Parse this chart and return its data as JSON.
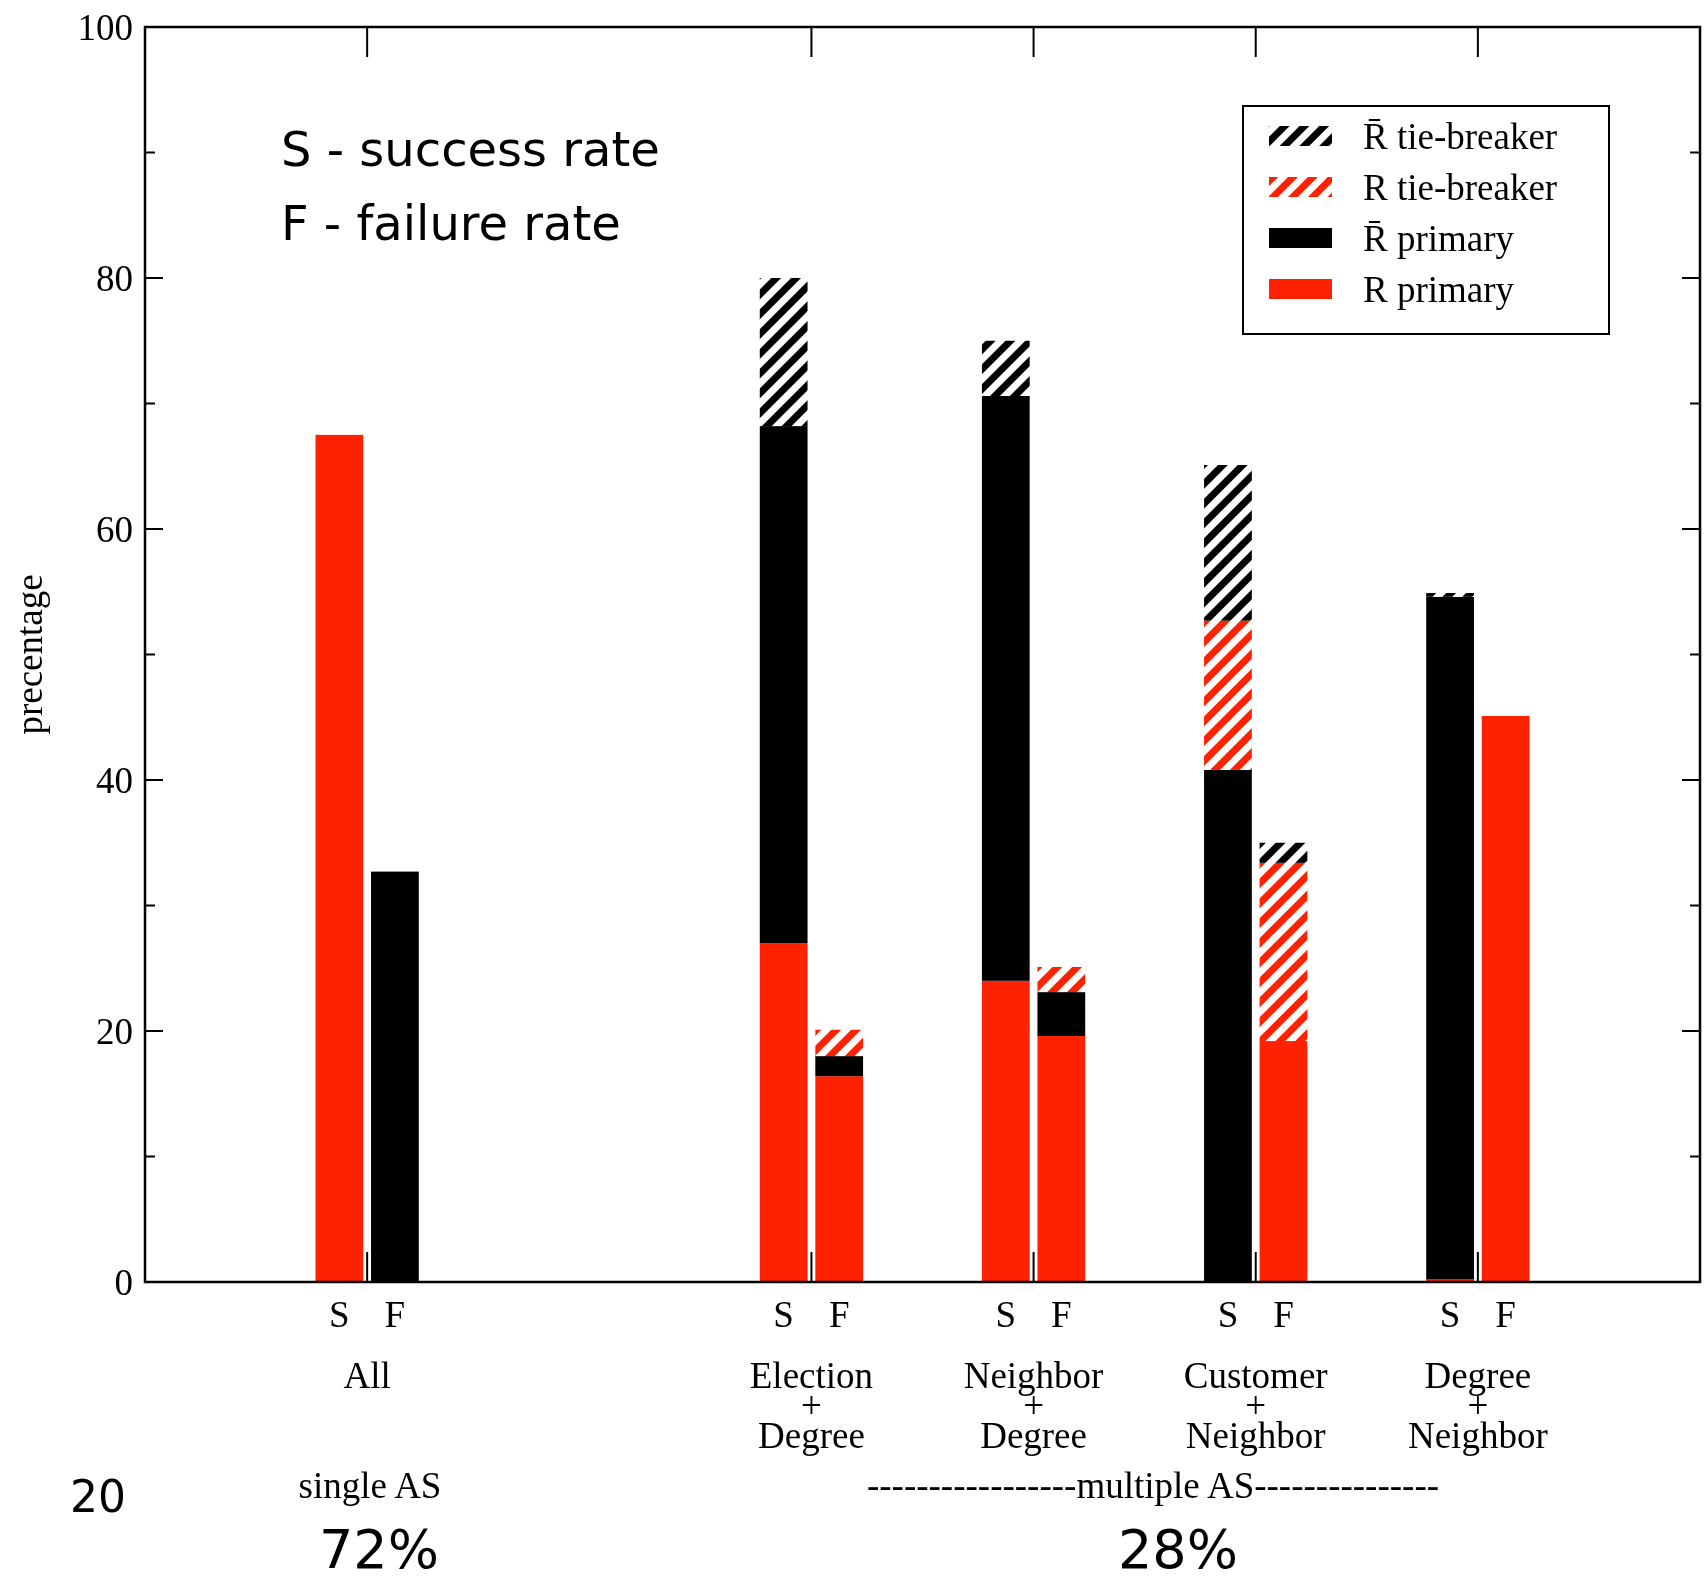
{
  "chart_data": {
    "type": "bar",
    "stacked": true,
    "ylabel": "precentage",
    "categories": [
      null,
      null,
      null,
      "S",
      "F",
      null,
      null,
      null,
      null,
      null,
      null,
      "S",
      "F",
      null,
      null,
      "S",
      "F",
      null,
      null,
      "S",
      "F",
      null,
      null,
      "S",
      "F",
      null,
      null,
      null
    ],
    "series": [
      {
        "name": "R primary",
        "color": "#ff2200",
        "values": [
          null,
          null,
          null,
          67.5,
          null,
          null,
          null,
          null,
          null,
          null,
          null,
          27.0,
          16.4,
          null,
          null,
          24.0,
          19.6,
          null,
          null,
          null,
          19.2,
          null,
          null,
          0.2,
          45.1,
          null,
          null,
          null
        ]
      },
      {
        "name": "R̄ primary",
        "color": "#000000",
        "values": [
          null,
          null,
          null,
          null,
          32.7,
          null,
          null,
          null,
          null,
          null,
          null,
          41.2,
          1.6,
          null,
          null,
          46.6,
          3.5,
          null,
          null,
          40.8,
          null,
          null,
          null,
          54.4,
          null,
          null,
          null,
          null
        ]
      },
      {
        "name": "R tie-breaker",
        "color": "#ff2200",
        "values": [
          null,
          null,
          null,
          null,
          null,
          null,
          null,
          null,
          null,
          null,
          null,
          null,
          2.1,
          null,
          null,
          null,
          2.0,
          null,
          null,
          11.9,
          14.2,
          null,
          null,
          null,
          null,
          null,
          null,
          null
        ]
      },
      {
        "name": "R̄ tie-breaker",
        "color": "#000000",
        "values": [
          null,
          null,
          null,
          null,
          null,
          null,
          null,
          null,
          null,
          null,
          null,
          11.8,
          null,
          null,
          null,
          4.4,
          null,
          null,
          null,
          12.4,
          1.6,
          null,
          null,
          0.3,
          null,
          null,
          null,
          null
        ]
      }
    ],
    "ylim": [
      0,
      100
    ],
    "yticks": [
      0,
      {
        "value": 10,
        "label": null
      },
      20,
      {
        "value": 30,
        "label": null
      },
      40,
      {
        "value": 50,
        "label": null
      },
      60,
      {
        "value": 70,
        "label": null
      },
      80,
      {
        "value": 90,
        "label": null
      },
      100
    ],
    "legend": "top right",
    "annotations": [
      "All",
      "Election\n+\nDegree",
      "Neighbor\n+\nDegree",
      "Customer\n+\nNeighbor",
      "Degree\n+\nNeighbor",
      "single AS",
      "-----------------multiple AS---------------",
      "72%",
      "28%",
      "S - success rate",
      "F - failure rate",
      "20"
    ]
  }
}
